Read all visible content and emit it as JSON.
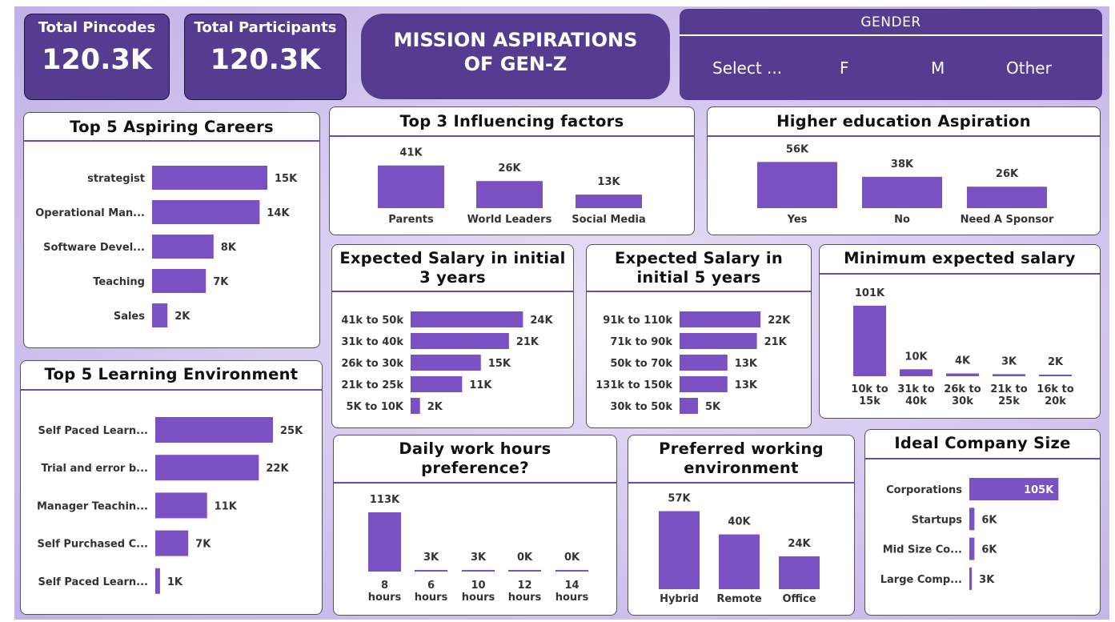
{
  "kpis": {
    "pincodes": {
      "label": "Total Pincodes",
      "value": "120.3K"
    },
    "participants": {
      "label": "Total Participants",
      "value": "120.3K"
    }
  },
  "title": {
    "line1": "MISSION ASPIRATIONS",
    "line2": "OF GEN-Z"
  },
  "gender_slicer": {
    "header": "GENDER",
    "options": [
      "Select ...",
      "F",
      "M",
      "Other"
    ]
  },
  "colors": {
    "bar": "#7a50c2",
    "panel": "#563c90",
    "accent_line": "#6a4ab8"
  },
  "chart_data": [
    {
      "id": "careers",
      "type": "bar",
      "orientation": "horizontal",
      "title": "Top 5 Aspiring Careers",
      "categories": [
        "strategist",
        "Operational Man...",
        "Software Devel...",
        "Teaching",
        "Sales"
      ],
      "values": [
        15,
        14,
        8,
        7,
        2
      ],
      "labels": [
        "15K",
        "14K",
        "8K",
        "7K",
        "2K"
      ]
    },
    {
      "id": "influencers",
      "type": "bar",
      "orientation": "vertical",
      "title": "Top 3 Influencing factors",
      "categories": [
        "Parents",
        "World Leaders",
        "Social Media"
      ],
      "values": [
        41,
        26,
        13
      ],
      "labels": [
        "41K",
        "26K",
        "13K"
      ]
    },
    {
      "id": "higher_ed",
      "type": "bar",
      "orientation": "vertical",
      "title": "Higher education Aspiration",
      "categories": [
        "Yes",
        "No",
        "Need A Sponsor"
      ],
      "values": [
        56,
        38,
        26
      ],
      "labels": [
        "56K",
        "38K",
        "26K"
      ]
    },
    {
      "id": "learning",
      "type": "bar",
      "orientation": "horizontal",
      "title": "Top 5 Learning Environment",
      "categories": [
        "Self Paced Learn...",
        "Trial and error b...",
        "Manager Teachin...",
        "Self Purchased C...",
        "Self Paced Learn..."
      ],
      "values": [
        25,
        22,
        11,
        7,
        1
      ],
      "labels": [
        "25K",
        "22K",
        "11K",
        "7K",
        "1K"
      ]
    },
    {
      "id": "salary3",
      "type": "bar",
      "orientation": "horizontal",
      "title": "Expected Salary in initial 3 years",
      "categories": [
        "41k to 50k",
        "31k to 40k",
        "26k to 30k",
        "21k to 25k",
        "5K to 10K"
      ],
      "values": [
        24,
        21,
        15,
        11,
        2
      ],
      "labels": [
        "24K",
        "21K",
        "15K",
        "11K",
        "2K"
      ]
    },
    {
      "id": "salary5",
      "type": "bar",
      "orientation": "horizontal",
      "title": "Expected Salary in initial 5 years",
      "categories": [
        "91k to 110k",
        "71k to 90k",
        "50k to 70k",
        "131k to 150k",
        "30k to 50k"
      ],
      "values": [
        22,
        21,
        13,
        13,
        5
      ],
      "labels": [
        "22K",
        "21K",
        "13K",
        "13K",
        "5K"
      ]
    },
    {
      "id": "min_salary",
      "type": "bar",
      "orientation": "vertical",
      "title": "Minimum expected salary",
      "categories": [
        [
          "10k to",
          "15k"
        ],
        [
          "31k to",
          "40k"
        ],
        [
          "26k to",
          "30k"
        ],
        [
          "21k to",
          "25k"
        ],
        [
          "16k to",
          "20k"
        ]
      ],
      "values": [
        101,
        10,
        4,
        3,
        2
      ],
      "labels": [
        "101K",
        "10K",
        "4K",
        "3K",
        "2K"
      ]
    },
    {
      "id": "work_hours",
      "type": "bar",
      "orientation": "vertical",
      "title": "Daily work hours preference?",
      "categories": [
        [
          "8",
          "hours"
        ],
        [
          "6",
          "hours"
        ],
        [
          "10",
          "hours"
        ],
        [
          "12",
          "hours"
        ],
        [
          "14",
          "hours"
        ]
      ],
      "values": [
        113,
        3,
        3,
        0.4,
        0.3
      ],
      "labels": [
        "113K",
        "3K",
        "3K",
        "0K",
        "0K"
      ]
    },
    {
      "id": "work_env",
      "type": "bar",
      "orientation": "vertical",
      "title": "Preferred working environment",
      "categories": [
        "Hybrid",
        "Remote",
        "Office"
      ],
      "values": [
        57,
        40,
        24
      ],
      "labels": [
        "57K",
        "40K",
        "24K"
      ]
    },
    {
      "id": "company_size",
      "type": "bar",
      "orientation": "horizontal",
      "title": "Ideal Company Size",
      "categories": [
        "Corporations",
        "Startups",
        "Mid Size Co...",
        "Large Comp..."
      ],
      "values": [
        105,
        6,
        6,
        3
      ],
      "labels": [
        "105K",
        "6K",
        "6K",
        "3K"
      ]
    }
  ]
}
